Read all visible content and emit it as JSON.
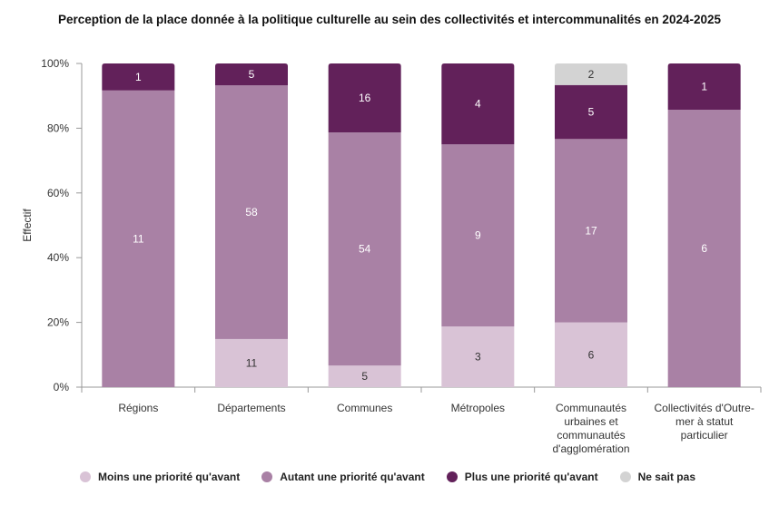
{
  "chart_data": {
    "type": "bar",
    "stacked": "percent",
    "title": "Perception de la place donnée à la politique culturelle au sein des collectivités et intercommunalités en 2024-2025",
    "ylabel": "Effectif",
    "xlabel": "",
    "ylim": [
      0,
      100
    ],
    "yticks": [
      "0%",
      "20%",
      "40%",
      "60%",
      "80%",
      "100%"
    ],
    "categories": [
      [
        "Régions"
      ],
      [
        "Départements"
      ],
      [
        "Communes"
      ],
      [
        "Métropoles"
      ],
      [
        "Communautés",
        "urbaines et",
        "communautés",
        "d'agglomération"
      ],
      [
        "Collectivités d'Outre-",
        "mer à statut",
        "particulier"
      ]
    ],
    "series": [
      {
        "name": "Moins une priorité qu'avant",
        "color": "#d9c3d6",
        "values": [
          0,
          11,
          5,
          3,
          6,
          0
        ]
      },
      {
        "name": "Autant une priorité qu'avant",
        "color": "#a981a5",
        "values": [
          11,
          58,
          54,
          9,
          17,
          6
        ]
      },
      {
        "name": "Plus une priorité qu'avant",
        "color": "#62215a",
        "values": [
          1,
          5,
          16,
          4,
          5,
          1
        ]
      },
      {
        "name": "Ne sait pas",
        "color": "#d3d3d3",
        "values": [
          0,
          0,
          0,
          0,
          2,
          0
        ]
      }
    ],
    "legend": "bottom"
  }
}
